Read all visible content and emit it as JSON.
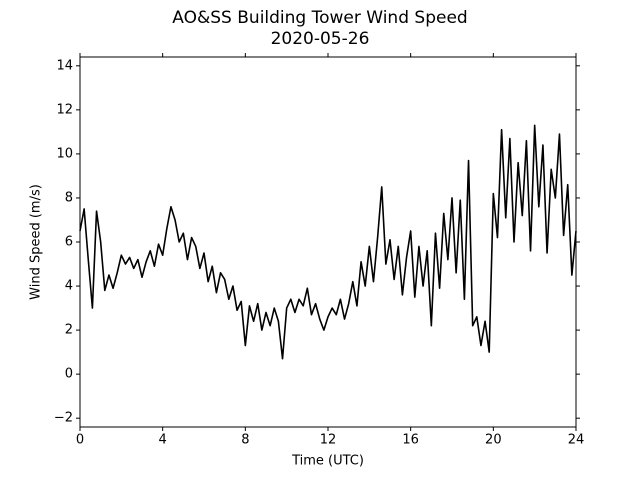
{
  "chart_data": {
    "type": "line",
    "title": "AO&SS Building Tower Wind Speed",
    "subtitle": "2020-05-26",
    "x_label": "Time (UTC)",
    "y_label": "Wind Speed (m/s)",
    "x": [
      0,
      0.2,
      0.4,
      0.6,
      0.8,
      1,
      1.2,
      1.4,
      1.6,
      1.8,
      2,
      2.2,
      2.4,
      2.6,
      2.8,
      3,
      3.2,
      3.4,
      3.6,
      3.8,
      4,
      4.2,
      4.4,
      4.6,
      4.8,
      5,
      5.2,
      5.4,
      5.6,
      5.8,
      6,
      6.2,
      6.4,
      6.6,
      6.8,
      7,
      7.2,
      7.4,
      7.6,
      7.8,
      8,
      8.2,
      8.4,
      8.6,
      8.8,
      9,
      9.2,
      9.4,
      9.6,
      9.8,
      10,
      10.2,
      10.4,
      10.6,
      10.8,
      11,
      11.2,
      11.4,
      11.6,
      11.8,
      12,
      12.2,
      12.4,
      12.6,
      12.8,
      13,
      13.2,
      13.4,
      13.6,
      13.8,
      14,
      14.2,
      14.4,
      14.6,
      14.8,
      15,
      15.2,
      15.4,
      15.6,
      15.8,
      16,
      16.2,
      16.4,
      16.6,
      16.8,
      17,
      17.2,
      17.4,
      17.6,
      17.8,
      18,
      18.2,
      18.4,
      18.6,
      18.8,
      19,
      19.2,
      19.4,
      19.6,
      19.8,
      20,
      20.2,
      20.4,
      20.6,
      20.8,
      21,
      21.2,
      21.4,
      21.6,
      21.8,
      22,
      22.2,
      22.4,
      22.6,
      22.8,
      23,
      23.2,
      23.4,
      23.6,
      23.8,
      24
    ],
    "series": [
      {
        "color": "#000000",
        "values": [
          6.5,
          7.5,
          5.2,
          3.0,
          7.4,
          6.0,
          3.8,
          4.5,
          3.9,
          4.6,
          5.4,
          5.0,
          5.3,
          4.8,
          5.2,
          4.4,
          5.1,
          5.6,
          4.9,
          5.9,
          5.4,
          6.6,
          7.6,
          7.0,
          6.0,
          6.4,
          5.2,
          6.2,
          5.8,
          4.8,
          5.5,
          4.2,
          4.9,
          3.7,
          4.6,
          4.3,
          3.4,
          4.0,
          2.9,
          3.3,
          1.3,
          3.1,
          2.4,
          3.2,
          2.0,
          2.8,
          2.2,
          3.0,
          2.4,
          0.7,
          3.0,
          3.4,
          2.8,
          3.4,
          3.1,
          3.9,
          2.7,
          3.2,
          2.5,
          2.0,
          2.6,
          3.0,
          2.7,
          3.4,
          2.5,
          3.2,
          4.2,
          3.1,
          5.1,
          4.0,
          5.8,
          4.2,
          6.2,
          8.5,
          5.0,
          6.1,
          4.3,
          5.8,
          3.6,
          5.3,
          6.5,
          3.5,
          5.8,
          4.0,
          5.6,
          2.2,
          6.4,
          3.9,
          7.3,
          5.2,
          8.0,
          4.6,
          7.9,
          3.4,
          9.7,
          2.2,
          2.6,
          1.3,
          2.4,
          1.0,
          8.2,
          6.2,
          11.1,
          7.1,
          10.7,
          6.0,
          9.6,
          7.2,
          10.6,
          5.6,
          11.3,
          7.6,
          10.4,
          5.5,
          9.3,
          8.0,
          10.9,
          6.3,
          8.6,
          4.5,
          6.5
        ]
      }
    ],
    "xlim": [
      0,
      24
    ],
    "xticks": [
      0,
      4,
      8,
      12,
      16,
      20,
      24
    ],
    "ylim": [
      -2.4,
      14.4
    ],
    "yticks": [
      {
        "value": -2,
        "label": "−2"
      },
      0,
      2,
      4,
      6,
      8,
      10,
      12,
      14
    ]
  }
}
